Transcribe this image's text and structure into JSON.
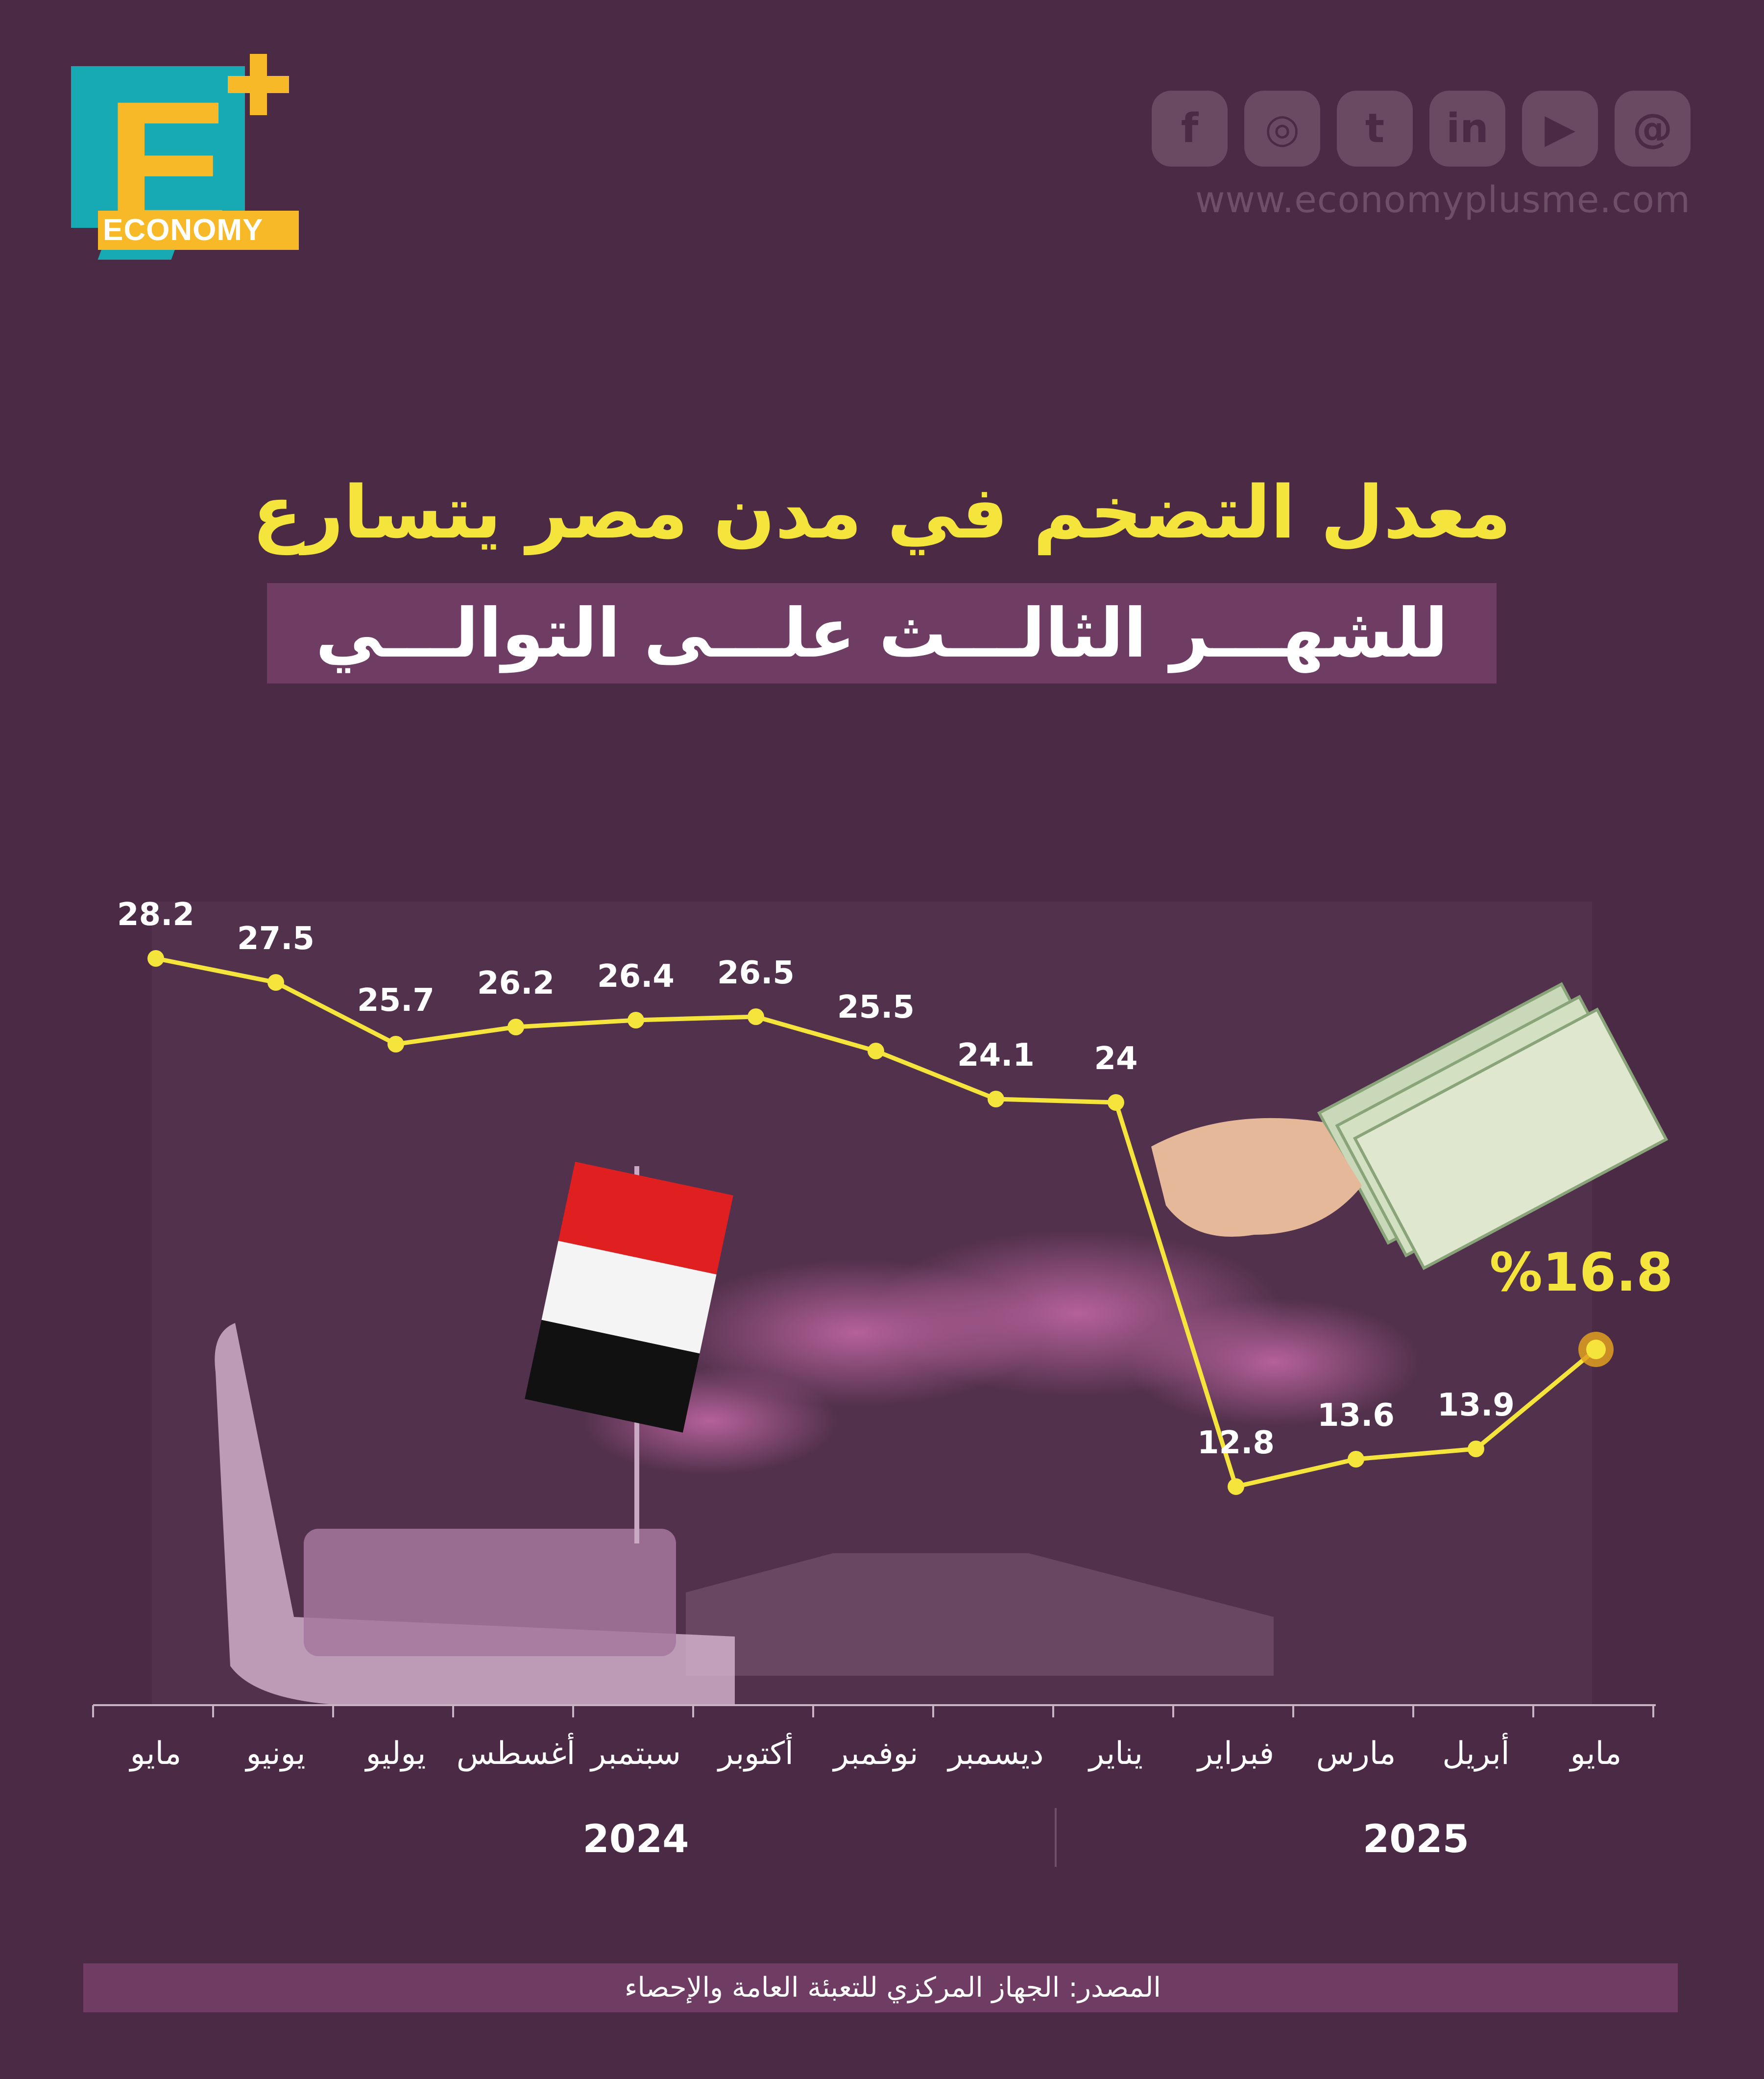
{
  "brand": {
    "logo_letter": "E",
    "logo_text": "ECONOMY",
    "website": "www.economyplusme.com",
    "social_icons": [
      "facebook-icon",
      "instagram-icon",
      "twitter-icon",
      "linkedin-icon",
      "youtube-icon",
      "threads-icon"
    ],
    "social_glyphs": [
      "f",
      "◎",
      "t",
      "in",
      "▶",
      "@"
    ]
  },
  "header": {
    "title_line1": "معدل التضخم في مدن مصر يتسارع",
    "title_line2": "للشهـــر الثالـــث علـــى التوالـــي"
  },
  "source": "المصدر: الجهاز المركزي للتعبئة العامة والإحصاء",
  "colors": {
    "background": "#4a2a44",
    "line": "#f4e43b",
    "title": "#f4e43b",
    "highlight_marker": "#e0a020",
    "banner": "#6f3d64"
  },
  "chart_data": {
    "type": "line",
    "categories": [
      "مايو",
      "يونيو",
      "يوليو",
      "أغسطس",
      "سبتمبر",
      "أكتوبر",
      "نوفمبر",
      "ديسمبر",
      "يناير",
      "فبراير",
      "مارس",
      "أبريل",
      "مايو"
    ],
    "values": [
      28.2,
      27.5,
      25.7,
      26.2,
      26.4,
      26.5,
      25.5,
      24.1,
      24,
      12.8,
      13.6,
      13.9,
      16.8
    ],
    "data_labels": [
      "28.2",
      "27.5",
      "25.7",
      "26.2",
      "26.4",
      "26.5",
      "25.5",
      "24.1",
      "24",
      "12.8",
      "13.6",
      "13.9",
      "%16.8"
    ],
    "year_groups": [
      {
        "label": "2024",
        "from": 0,
        "to": 8
      },
      {
        "label": "2025",
        "from": 9,
        "to": 12
      }
    ],
    "highlight_index": 12,
    "ylim": [
      10,
      30
    ],
    "grid": false,
    "legend": "none"
  }
}
